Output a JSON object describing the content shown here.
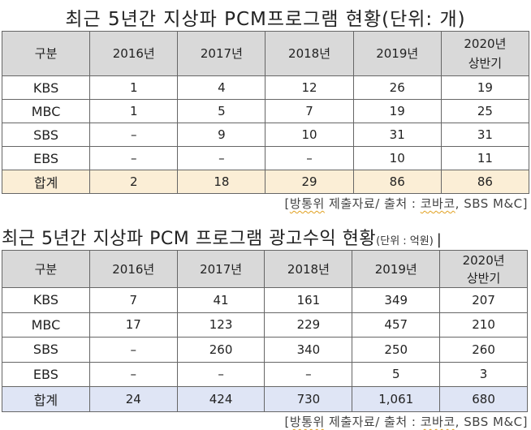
{
  "table1": {
    "title": "최근 5년간 지상파 PCM프로그램 현황(단위: 개)",
    "headers": [
      "구분",
      "2016년",
      "2017년",
      "2018년",
      "2019년",
      "2020년",
      "상반기"
    ],
    "rows": [
      {
        "label": "KBS",
        "values": [
          "1",
          "4",
          "12",
          "26",
          "19"
        ]
      },
      {
        "label": "MBC",
        "values": [
          "1",
          "5",
          "7",
          "19",
          "25"
        ]
      },
      {
        "label": "SBS",
        "values": [
          "–",
          "9",
          "10",
          "31",
          "31"
        ]
      },
      {
        "label": "EBS",
        "values": [
          "–",
          "–",
          "–",
          "10",
          "11"
        ]
      }
    ],
    "total": {
      "label": "합계",
      "values": [
        "2",
        "18",
        "29",
        "86",
        "86"
      ]
    },
    "source": {
      "open": "[",
      "a": "방통위",
      "b": " 제출자료/ 출처 : ",
      "c": "코바코",
      "d": ", SBS M&C]"
    }
  },
  "table2": {
    "title": "최근 5년간 지상파 PCM 프로그램 광고수익 현황",
    "unit": "(단위 : 억원)",
    "cursor": "|",
    "headers": [
      "구분",
      "2016년",
      "2017년",
      "2018년",
      "2019년",
      "2020년",
      "상반기"
    ],
    "rows": [
      {
        "label": "KBS",
        "values": [
          "7",
          "41",
          "161",
          "349",
          "207"
        ]
      },
      {
        "label": "MBC",
        "values": [
          "17",
          "123",
          "229",
          "457",
          "210"
        ]
      },
      {
        "label": "SBS",
        "values": [
          "–",
          "260",
          "340",
          "250",
          "260"
        ]
      },
      {
        "label": "EBS",
        "values": [
          "–",
          "–",
          "–",
          "5",
          "3"
        ]
      }
    ],
    "total": {
      "label": "합계",
      "values": [
        "24",
        "424",
        "730",
        "1,061",
        "680"
      ]
    },
    "source": {
      "open": "[",
      "a": "방통위",
      "b": " 제출자료/ 출처 : ",
      "c": "코바코",
      "d": ", SBS M&C]"
    }
  },
  "colors": {
    "header_bg": "#d9d9d9",
    "table1_total_bg": "#fbeed6",
    "table2_total_bg": "#dfe5f5",
    "border": "#666666"
  }
}
